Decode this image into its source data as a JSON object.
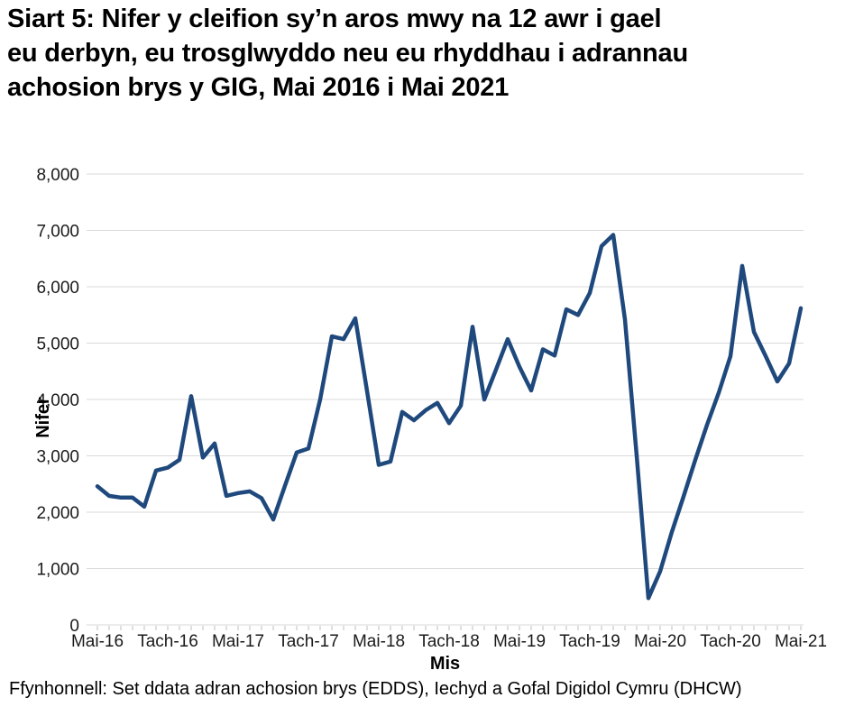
{
  "title_lines": [
    "Siart 5: Nifer y cleifion sy’n aros mwy na 12 awr i gael",
    "eu derbyn, eu trosglwyddo neu eu rhyddhau i adrannau",
    "achosion brys y GIG, Mai 2016 i Mai 2021"
  ],
  "source": "Ffynhonnell: Set ddata adran achosion brys (EDDS), Iechyd a Gofal Digidol Cymru (DHCW)",
  "chart_data": {
    "type": "line",
    "title": "Siart 5: Nifer y cleifion sy’n aros mwy na 12 awr i gael eu derbyn, eu trosglwyddo neu eu rhyddhau i adrannau achosion brys y GIG, Mai 2016 i Mai 2021",
    "xlabel": "Mis",
    "ylabel": "Nifer",
    "ylim": [
      0,
      8000
    ],
    "y_tick_step": 1000,
    "y_tick_labels": [
      "0",
      "1,000",
      "2,000",
      "3,000",
      "4,000",
      "5,000",
      "6,000",
      "7,000",
      "8,000"
    ],
    "x_tick_labels": [
      "Mai-16",
      "Tach-16",
      "Mai-17",
      "Tach-17",
      "Mai-18",
      "Tach-18",
      "Mai-19",
      "Tach-19",
      "Mai-20",
      "Tach-20",
      "Mai-21"
    ],
    "x_frequency": "monthly",
    "x_label_every_n_months": 6,
    "x_range": "Mai 2016 i Mai 2021",
    "grid": true,
    "legend": false,
    "line_color": "#1F497D",
    "grid_color": "#d9d9d9",
    "tick_color": "#bfbfbf",
    "values": [
      2460,
      2290,
      2260,
      2260,
      2100,
      2740,
      2790,
      2930,
      4060,
      2970,
      3220,
      2290,
      2340,
      2370,
      2250,
      1870,
      2470,
      3060,
      3130,
      4000,
      5120,
      5070,
      5440,
      4150,
      2840,
      2900,
      3780,
      3630,
      3810,
      3940,
      3580,
      3890,
      5290,
      4000,
      4530,
      5070,
      4580,
      4160,
      4890,
      4780,
      5600,
      5500,
      5890,
      6720,
      6920,
      5420,
      3000,
      475,
      950,
      1650,
      2280,
      2930,
      3550,
      4120,
      4770,
      6370,
      5200,
      4770,
      4320,
      4640,
      5620
    ]
  }
}
